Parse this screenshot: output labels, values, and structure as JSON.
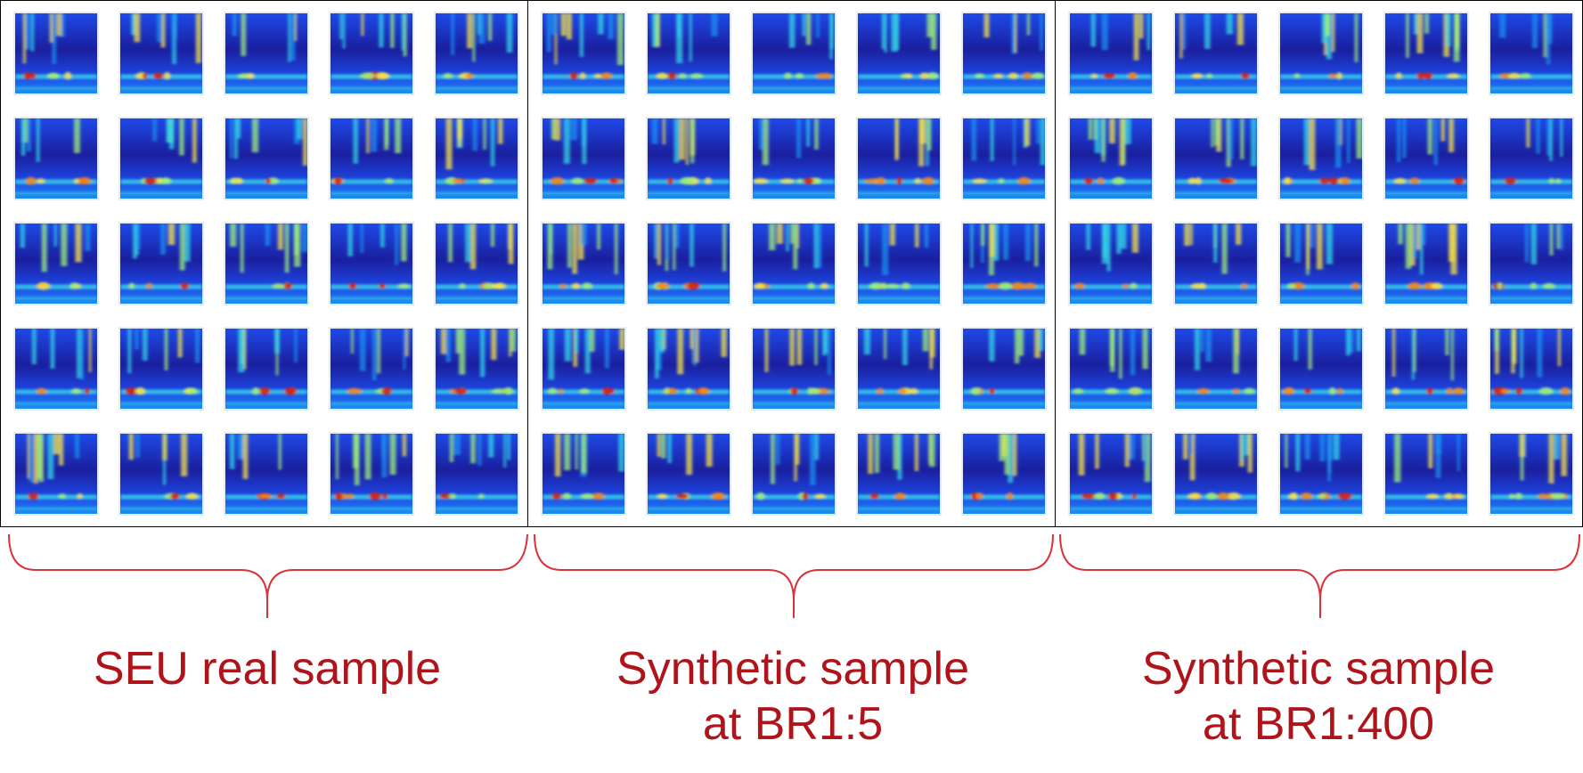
{
  "panels": [
    {
      "caption": "SEU real sample"
    },
    {
      "caption": "Synthetic sample\nat BR1:5"
    },
    {
      "caption": "Synthetic sample\nat BR1:400"
    }
  ],
  "grid": {
    "rows": 5,
    "cols": 5
  },
  "colors": {
    "caption": "#b0141b",
    "brace": "#d9333a",
    "panel_border": "#000000",
    "spectrogram_palette": [
      "#1a1f9e",
      "#1e49e8",
      "#1e8ff0",
      "#33d6e6",
      "#9ff07a",
      "#f5e24a",
      "#f28a1c",
      "#d61e12"
    ]
  }
}
